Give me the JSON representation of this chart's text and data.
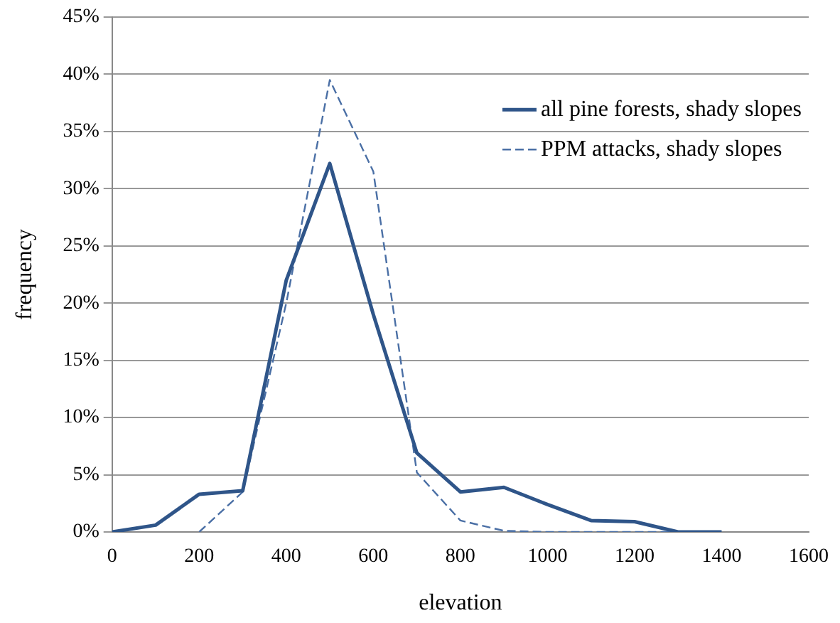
{
  "chart_data": {
    "type": "line",
    "xlabel": "elevation",
    "ylabel": "frequency",
    "xlim": [
      0,
      1600
    ],
    "xticks": [
      0,
      200,
      400,
      600,
      800,
      1000,
      1200,
      1400,
      1600
    ],
    "ylim": [
      0,
      45
    ],
    "yticks": [
      {
        "value": 0,
        "label": "0%"
      },
      {
        "value": 5,
        "label": "5%"
      },
      {
        "value": 10,
        "label": "10%"
      },
      {
        "value": 15,
        "label": "15%"
      },
      {
        "value": 20,
        "label": "20%"
      },
      {
        "value": 25,
        "label": "25%"
      },
      {
        "value": 30,
        "label": "30%"
      },
      {
        "value": 35,
        "label": "35%"
      },
      {
        "value": 40,
        "label": "40%"
      },
      {
        "value": 45,
        "label": "45%"
      }
    ],
    "grid": "y",
    "legend": "right",
    "marker": "none",
    "series": [
      {
        "name": "all pine forests, shady slopes",
        "color": "#2f5589",
        "line_style": "solid",
        "x": [
          0,
          100,
          200,
          300,
          400,
          500,
          600,
          700,
          800,
          900,
          1000,
          1100,
          1200,
          1300,
          1400
        ],
        "values": [
          0,
          0.6,
          3.3,
          3.6,
          22,
          32.2,
          19,
          6.9,
          3.5,
          3.9,
          2.4,
          1.0,
          0.9,
          0,
          0
        ]
      },
      {
        "name": "PPM attacks, shady slopes",
        "color": "#4a6fa5",
        "line_style": "dashed",
        "x": [
          200,
          300,
          400,
          500,
          600,
          700,
          800,
          900,
          1000,
          1100,
          1200,
          1300,
          1400
        ],
        "values": [
          0,
          3.5,
          20,
          39.5,
          31.5,
          5.2,
          1.0,
          0.1,
          0,
          0,
          0,
          0,
          0
        ]
      }
    ]
  }
}
